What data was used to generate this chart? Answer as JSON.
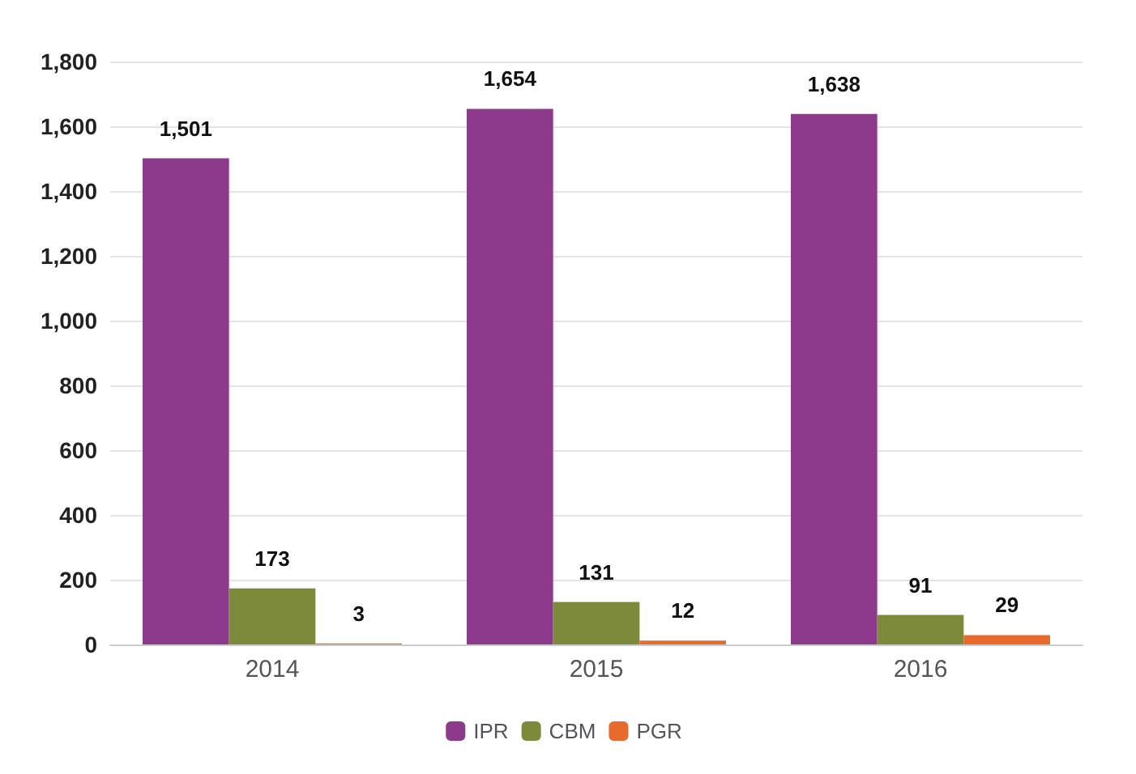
{
  "chart_data": {
    "type": "bar",
    "categories": [
      "2014",
      "2015",
      "2016"
    ],
    "series": [
      {
        "name": "IPR",
        "color": "#8e3a8c",
        "values": [
          1501,
          1654,
          1638
        ],
        "value_labels": [
          "1,501",
          "1,654",
          "1,638"
        ]
      },
      {
        "name": "CBM",
        "color": "#7d8a3c",
        "values": [
          173,
          131,
          91
        ],
        "value_labels": [
          "173",
          "131",
          "91"
        ]
      },
      {
        "name": "PGR",
        "color": "#e86a2c",
        "values": [
          3,
          12,
          29
        ],
        "value_labels": [
          "3",
          "12",
          "29"
        ]
      }
    ],
    "ylim": [
      0,
      1800
    ],
    "yticks": [
      0,
      {
        "value": 200,
        "label": "200"
      },
      400,
      600,
      800,
      {
        "value": 1000,
        "label": "1,000"
      },
      {
        "value": 1200,
        "label": "1,200"
      },
      {
        "value": 1400,
        "label": "1,400"
      },
      {
        "value": 1600,
        "label": "1,600"
      },
      {
        "value": 1800,
        "label": "1,800"
      }
    ],
    "grid": "y",
    "legend": "bottom"
  }
}
